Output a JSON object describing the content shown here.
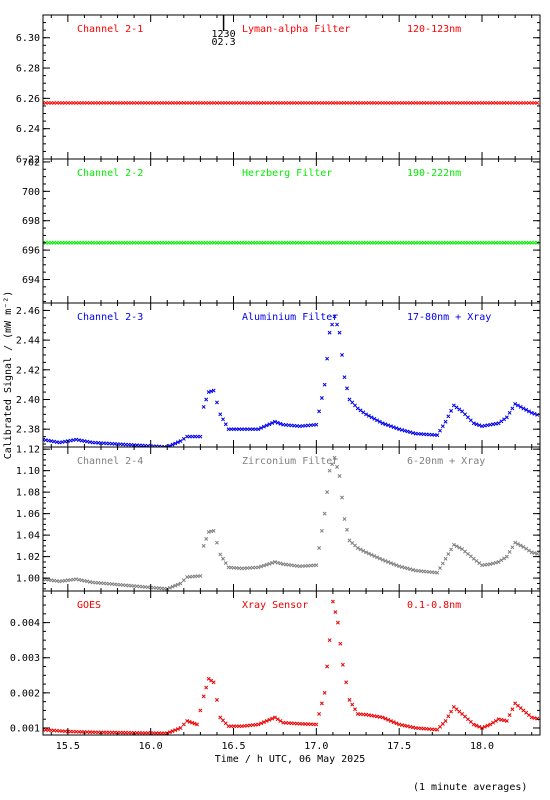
{
  "chart_data": {
    "type": "scatter",
    "xlabel": "Time / h UTC, 06 May 2025",
    "ylabel": "Calibrated Signal / (mW m⁻²)",
    "footnote": "(1 minute averages)",
    "xlim": [
      15.35,
      18.35
    ],
    "xticks": [
      15.5,
      16.0,
      16.5,
      17.0,
      17.5,
      18.0
    ],
    "xtick_labels": [
      "15.5",
      "16.0",
      "16.5",
      "17.0",
      "17.5",
      "18.0"
    ],
    "marker_text": [
      "1230",
      "02.3"
    ],
    "marker_x": 16.44,
    "panels": [
      {
        "label": "Channel 2-1",
        "filter": "Lyman-alpha Filter",
        "band": "120-123nm",
        "color": "#ff0000",
        "ylim": [
          6.22,
          6.315
        ],
        "yticks": [
          6.22,
          6.24,
          6.26,
          6.28,
          6.3
        ],
        "ytick_labels": [
          "6.22",
          "6.24",
          "6.26",
          "6.28",
          "6.30"
        ],
        "x": [
          15.35,
          18.35
        ],
        "y": [
          6.257,
          6.257
        ]
      },
      {
        "label": "Channel 2-2",
        "filter": "Herzberg Filter",
        "band": "190-222nm",
        "color": "#00ee00",
        "ylim": [
          692.4,
          702.2
        ],
        "yticks": [
          694,
          696,
          698,
          700,
          702
        ],
        "ytick_labels": [
          "694",
          "696",
          "698",
          "700",
          "702"
        ],
        "x": [
          15.35,
          18.35
        ],
        "y": [
          696.5,
          696.5
        ]
      },
      {
        "label": "Channel 2-3",
        "filter": "Aluminium Filter",
        "band": "17-80nm + Xray",
        "color": "#0000ee",
        "ylim": [
          2.368,
          2.465
        ],
        "yticks": [
          2.38,
          2.4,
          2.42,
          2.44,
          2.46
        ],
        "ytick_labels": [
          "2.38",
          "2.40",
          "2.42",
          "2.44",
          "2.46"
        ],
        "x": [
          15.35,
          15.45,
          15.55,
          15.65,
          15.8,
          15.95,
          16.1,
          16.18,
          16.22,
          16.3,
          16.32,
          16.35,
          16.38,
          16.42,
          16.47,
          16.55,
          16.65,
          16.75,
          16.8,
          16.9,
          17.0,
          17.05,
          17.08,
          17.11,
          17.14,
          17.17,
          17.2,
          17.25,
          17.3,
          17.4,
          17.5,
          17.6,
          17.73,
          17.78,
          17.83,
          17.88,
          17.95,
          18.0,
          18.05,
          18.1,
          18.15,
          18.2,
          18.25,
          18.3,
          18.35
        ],
        "y": [
          2.373,
          2.371,
          2.373,
          2.371,
          2.37,
          2.369,
          2.368,
          2.372,
          2.375,
          2.375,
          2.395,
          2.405,
          2.406,
          2.39,
          2.38,
          2.38,
          2.38,
          2.385,
          2.383,
          2.382,
          2.383,
          2.41,
          2.445,
          2.456,
          2.445,
          2.415,
          2.4,
          2.394,
          2.39,
          2.384,
          2.38,
          2.377,
          2.376,
          2.385,
          2.396,
          2.392,
          2.384,
          2.382,
          2.383,
          2.384,
          2.388,
          2.397,
          2.394,
          2.391,
          2.389
        ]
      },
      {
        "label": "Channel 2-4",
        "filter": "Zirconium Filter",
        "band": "6-20nm + Xray",
        "color": "#808080",
        "ylim": [
          0.988,
          1.122
        ],
        "yticks": [
          1.0,
          1.02,
          1.04,
          1.06,
          1.08,
          1.1,
          1.12
        ],
        "ytick_labels": [
          "1.00",
          "1.02",
          "1.04",
          "1.06",
          "1.08",
          "1.10",
          "1.12"
        ],
        "x": [
          15.35,
          15.45,
          15.55,
          15.65,
          15.8,
          15.95,
          16.1,
          16.18,
          16.22,
          16.3,
          16.32,
          16.35,
          16.38,
          16.42,
          16.47,
          16.55,
          16.65,
          16.75,
          16.8,
          16.9,
          17.0,
          17.05,
          17.08,
          17.11,
          17.14,
          17.17,
          17.2,
          17.25,
          17.3,
          17.4,
          17.5,
          17.6,
          17.73,
          17.78,
          17.83,
          17.88,
          17.95,
          18.0,
          18.05,
          18.1,
          18.15,
          18.2,
          18.25,
          18.3,
          18.35
        ],
        "y": [
          0.999,
          0.997,
          0.999,
          0.996,
          0.994,
          0.992,
          0.99,
          0.995,
          1.001,
          1.002,
          1.03,
          1.043,
          1.044,
          1.022,
          1.01,
          1.009,
          1.01,
          1.015,
          1.013,
          1.011,
          1.012,
          1.06,
          1.1,
          1.112,
          1.095,
          1.055,
          1.035,
          1.028,
          1.024,
          1.017,
          1.011,
          1.007,
          1.005,
          1.018,
          1.031,
          1.027,
          1.018,
          1.012,
          1.013,
          1.015,
          1.02,
          1.033,
          1.029,
          1.024,
          1.022
        ]
      },
      {
        "label": "GOES",
        "filter": "Xray Sensor",
        "band": "0.1-0.8nm",
        "color": "#ee0000",
        "ylim": [
          0.0008,
          0.0049
        ],
        "yticks": [
          0.001,
          0.002,
          0.003,
          0.004
        ],
        "ytick_labels": [
          "0.001",
          "0.002",
          "0.003",
          "0.004"
        ],
        "x": [
          15.35,
          15.5,
          15.65,
          15.8,
          15.95,
          16.1,
          16.18,
          16.22,
          16.28,
          16.32,
          16.35,
          16.38,
          16.42,
          16.47,
          16.55,
          16.65,
          16.75,
          16.8,
          16.9,
          17.0,
          17.05,
          17.08,
          17.1,
          17.13,
          17.16,
          17.2,
          17.25,
          17.3,
          17.4,
          17.5,
          17.6,
          17.73,
          17.78,
          17.83,
          17.88,
          17.95,
          18.0,
          18.05,
          18.1,
          18.15,
          18.2,
          18.25,
          18.3,
          18.35
        ],
        "y": [
          0.00095,
          0.0009,
          0.00088,
          0.00087,
          0.00086,
          0.00085,
          0.001,
          0.0012,
          0.0011,
          0.0019,
          0.0024,
          0.0023,
          0.0013,
          0.00105,
          0.00105,
          0.0011,
          0.0013,
          0.00115,
          0.00112,
          0.0011,
          0.002,
          0.0035,
          0.0046,
          0.004,
          0.0028,
          0.0018,
          0.0014,
          0.00138,
          0.0013,
          0.0011,
          0.001,
          0.00095,
          0.0012,
          0.0016,
          0.0014,
          0.0011,
          0.001,
          0.0011,
          0.00125,
          0.0012,
          0.0017,
          0.0015,
          0.0013,
          0.00125
        ]
      }
    ]
  }
}
